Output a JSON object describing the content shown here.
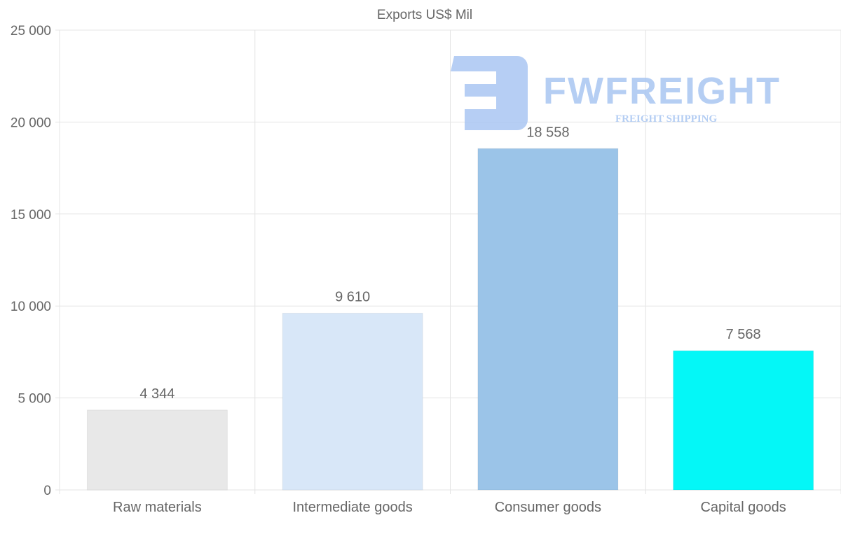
{
  "chart_data": {
    "type": "bar",
    "title": "Exports US$ Mil",
    "categories": [
      "Raw materials",
      "Intermediate goods",
      "Consumer goods",
      "Capital goods"
    ],
    "values": [
      4344,
      9610,
      18558,
      7568
    ],
    "value_labels": [
      "4 344",
      "9 610",
      "18 558",
      "7 568"
    ],
    "colors": [
      "#e8e8e8",
      "#d8e7f8",
      "#9bc4e8",
      "#04f7f7"
    ],
    "xlabel": "",
    "ylabel": "",
    "ylim": [
      0,
      25000
    ],
    "yticks": [
      0,
      5000,
      10000,
      15000,
      20000,
      25000
    ],
    "ytick_labels": [
      "0",
      "5 000",
      "10 000",
      "15 000",
      "20 000",
      "25 000"
    ],
    "grid": true,
    "legend": "none"
  },
  "watermark": {
    "brand": "FWFREIGHT",
    "tagline": "FREIGHT SHIPPING",
    "color": "#a9c6f2"
  }
}
